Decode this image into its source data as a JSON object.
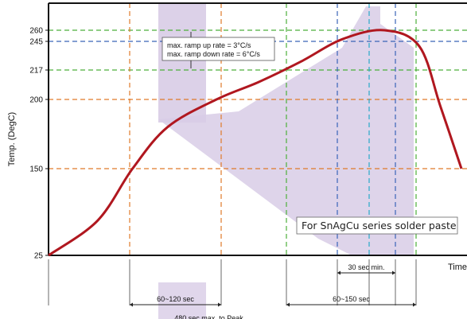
{
  "chart_data": {
    "type": "line",
    "ylabel": "Temp. (DegC)",
    "xlabel": "Time",
    "y_ticks": [
      25,
      150,
      200,
      217,
      245,
      260
    ],
    "colors": {
      "curve": "#b0171f",
      "shade": "#d8cce6",
      "guide_150": "#e07a2a",
      "guide_200": "#e07a2a",
      "guide_217": "#4caf3a",
      "guide_245": "#3a63b8",
      "guide_260": "#4caf3a",
      "axis": "#111111"
    },
    "annotations": {
      "ramp_up": "max. ramp up rate = 3°C/s",
      "ramp_down": "max. ramp down rate = 6°C/s",
      "paste_note": "For SnAgCu series solder paste"
    },
    "intervals": [
      {
        "label": "30 sec min."
      },
      {
        "label": "60~120 sec"
      },
      {
        "label": "60~150 sec"
      },
      {
        "label": "480 sec max. to Peak"
      }
    ],
    "series": [
      {
        "values": [
          {
            "t": 0,
            "temp": 25
          },
          {
            "t": 70,
            "temp": 75
          },
          {
            "t": 120,
            "temp": 150
          },
          {
            "t": 170,
            "temp": 180
          },
          {
            "t": 240,
            "temp": 200
          },
          {
            "t": 300,
            "temp": 210
          },
          {
            "t": 360,
            "temp": 225
          },
          {
            "t": 420,
            "temp": 248
          },
          {
            "t": 480,
            "temp": 260
          },
          {
            "t": 530,
            "temp": 240
          },
          {
            "t": 560,
            "temp": 195
          },
          {
            "t": 590,
            "temp": 150
          }
        ]
      }
    ]
  }
}
